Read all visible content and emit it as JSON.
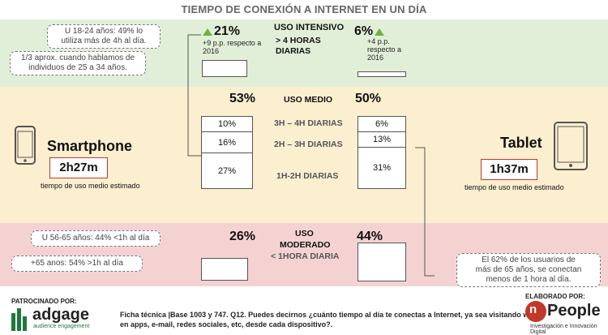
{
  "title": "TIEMPO DE CONEXIÓN A INTERNET EN UN DÍA",
  "intensive": {
    "label": "USO INTENSIVO",
    "sublabel_line1": "> 4 HORAS",
    "sublabel_line2": "DIARIAS",
    "smartphone_pct": "21%",
    "smartphone_note_line1": "+9 p.p. respecto a",
    "smartphone_note_line2": "2016",
    "tablet_pct": "6%",
    "tablet_note_line1": "+4 p.p.",
    "tablet_note_line2": "respecto a",
    "tablet_note_line3": "2016"
  },
  "callouts_top": [
    {
      "line1": "U 18-24 años: 49% lo",
      "line2": "utiliza más de 4h al día."
    },
    {
      "line1": "1/3 aprox. cuando hablamos de",
      "line2": "individuos de 25 a 34 años."
    }
  ],
  "medium": {
    "label": "USO MEDIO",
    "smartphone_pct": "53%",
    "tablet_pct": "50%",
    "rows": [
      {
        "label": "3H – 4H DIARIAS",
        "smartphone": "10%",
        "tablet": "6%"
      },
      {
        "label": "2H – 3H DIARIAS",
        "smartphone": "16%",
        "tablet": "13%"
      },
      {
        "label": "1H-2H DIARIAS",
        "smartphone": "27%",
        "tablet": "31%"
      }
    ]
  },
  "smartphone": {
    "name": "Smartphone",
    "time": "2h27m",
    "caption": "tiempo de uso medio estimado"
  },
  "tablet": {
    "name": "Tablet",
    "time": "1h37m",
    "caption": "tiempo de uso medio estimado"
  },
  "moderate": {
    "label_line1": "USO",
    "label_line2": "MODERADO",
    "sublabel": "< 1HORA DIARIA",
    "smartphone_pct": "26%",
    "tablet_pct": "44%"
  },
  "callouts_bottom": [
    {
      "text": "U 56-65 años: 44% <1h al día"
    },
    {
      "text": "+65 anos: 54% >1h al día"
    }
  ],
  "callout_right": {
    "line1": "El 62% de los usuarios de",
    "line2": "más de 65 años, se conectan",
    "line3": "menos de 1 hora al día."
  },
  "footer": {
    "sponsor_label": "PATROCINADO POR:",
    "sponsor_name": "adgage",
    "sponsor_tagline": "audience engagement",
    "tech_line1": "Ficha técnica |Base 1003 y 747. Q12. Puedes decirnos ¿cuánto tiempo al día te conectas a Internet, ya sea visitando webs,",
    "tech_line2": "en apps, e-mail, redes sociales, etc, desde cada dispositivo?.",
    "author_label": "ELABORADO POR:",
    "author_name": "People",
    "author_tagline": "Investigación e Innovación Digital"
  },
  "colors": {
    "band_top": "#e2efd8",
    "band_mid": "#fcefd0",
    "band_bot": "#f5d2d2",
    "accent_green": "#6db33f",
    "accent_red": "#c0392b"
  }
}
